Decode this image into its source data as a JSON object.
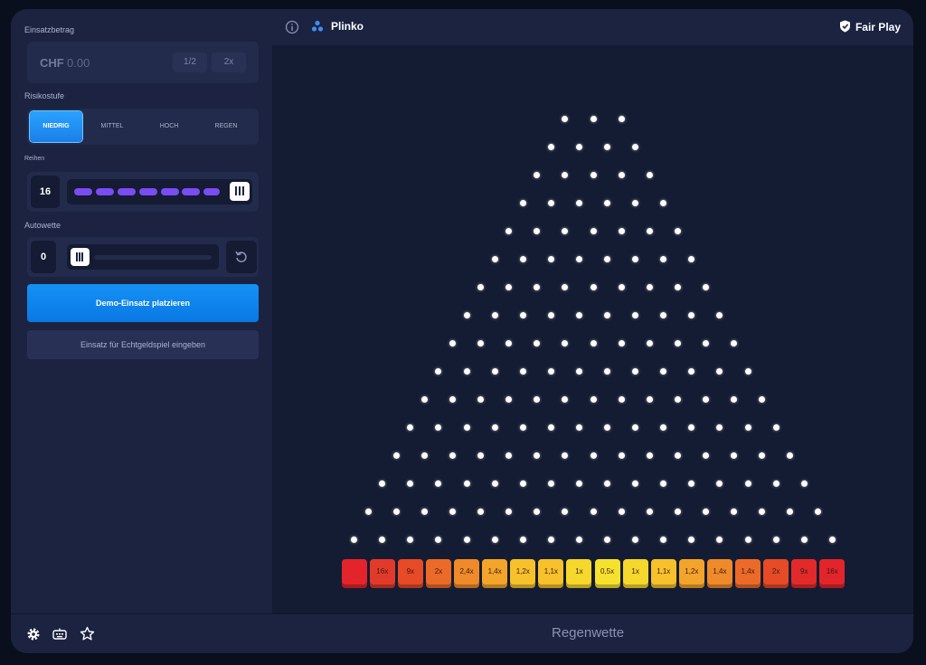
{
  "sidebar": {
    "bet_label": "Einsatzbetrag",
    "bet_currency": "CHF",
    "bet_placeholder": "0.00",
    "half_label": "1/2",
    "double_label": "2x",
    "risk_label": "Risikostufe",
    "risk_options": [
      "NIEDRIG",
      "MITTEL",
      "HOCH",
      "REGEN"
    ],
    "risk_selected": "NIEDRIG",
    "rows_label": "Reihen",
    "rows_value": "16",
    "autobet_label": "Autowette",
    "autobet_value": "0",
    "play_button": "Demo-Einsatz platzieren",
    "real_button": "Einsatz für Echtgeldspiel eingeben"
  },
  "header": {
    "game_title": "Plinko",
    "fair_play": "Fair Play"
  },
  "board": {
    "peg_rows": 16,
    "multipliers": [
      "",
      "16x",
      "9x",
      "2x",
      "2,4x",
      "1,4x",
      "1,2x",
      "1,1x",
      "1x",
      "0,5x",
      "1x",
      "1,1x",
      "1,2x",
      "1,4x",
      "1,4x",
      "2x",
      "9x",
      "16x"
    ],
    "bucket_colors": [
      "#e3242b",
      "#e23a2a",
      "#e64a26",
      "#ec6a28",
      "#ef8a2a",
      "#f3a42a",
      "#f6c12b",
      "#f6c12b",
      "#f6d72c",
      "#f6e22e",
      "#f6d72c",
      "#f6c12b",
      "#f3a42a",
      "#ef8a2a",
      "#ec6a28",
      "#e64a26",
      "#e32a2b",
      "#e3242b"
    ]
  },
  "footer": {
    "rain_bet": "Regenwette"
  },
  "colors": {
    "accent": "#1591f5",
    "slider": "#7a4cf2"
  }
}
